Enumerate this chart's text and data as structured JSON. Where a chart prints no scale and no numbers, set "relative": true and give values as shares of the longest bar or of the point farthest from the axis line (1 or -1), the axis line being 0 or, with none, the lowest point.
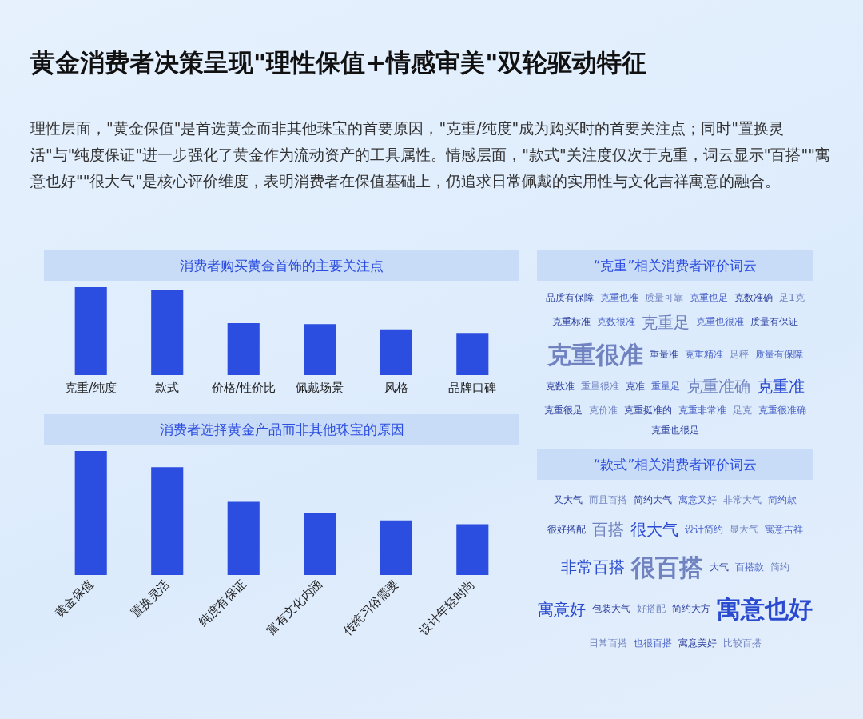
{
  "chart_data": [
    {
      "type": "other",
      "title": "黄金消费者决策呈现\"理性保值+情感审美\"双轮驱动特征",
      "subtitle": "理性层面，\"黄金保值\"是首选黄金而非其他珠宝的首要原因，\"克重/纯度\"成为购买时的首要关注点；同时\"置换灵活\"与\"纯度保证\"进一步强化了黄金作为流动资产的工具属性。情感层面，\"款式\"关注度仅次于克重，词云显示\"百搭\"\"寓意也好\"\"很大气\"是核心评价维度，表明消费者在保值基础上，仍追求日常佩戴的实用性与文化吉祥寓意的融合。"
    },
    {
      "type": "bar",
      "title": "消费者购买黄金首饰的主要关注点",
      "relative": true,
      "color": "#2b4de0",
      "categories": [
        "克重/纯度",
        "款式",
        "价格/性价比",
        "佩戴场景",
        "风格",
        "品牌口碑"
      ],
      "values": [
        1,
        0.97,
        0.59,
        0.58,
        0.52,
        0.48
      ]
    },
    {
      "type": "bar",
      "title": "消费者选择黄金产品而非其他珠宝的原因",
      "relative": true,
      "color": "#2b4de0",
      "categories": [
        "黄金保值",
        "置换灵活",
        "纯度有保证",
        "富有文化内涵",
        "传统习俗需要",
        "设计年轻时尚"
      ],
      "values": [
        1,
        0.87,
        0.59,
        0.5,
        0.44,
        0.41
      ]
    },
    {
      "type": "other",
      "title": "“克重”相关消费者评价词云",
      "annotations": [
        "品质有保障",
        "克重也准",
        "质量可靠",
        "克重也足",
        "克数准确",
        "足1克",
        "克重标准",
        "克数很准",
        "克重足",
        "克重也很准",
        "质量有保证",
        "克重很准",
        "重量准",
        "克重精准",
        "足秤",
        "质量有保障",
        "克数准",
        "重量很准",
        "克准",
        "重量足",
        "克重准确",
        "克重准",
        "克重很足",
        "克价准",
        "克重挺准的",
        "克重非常准",
        "足克",
        "克重很准确",
        "克重也很足"
      ]
    },
    {
      "type": "other",
      "title": "“款式”相关消费者评价词云",
      "annotations": [
        "又大气",
        "而且百搭",
        "简约大气",
        "寓意又好",
        "非常大气",
        "简约款",
        "很好搭配",
        "百搭",
        "很大气",
        "设计简约",
        "显大气",
        "寓意吉祥",
        "非常百搭",
        "很百搭",
        "大气",
        "百搭款",
        "简约",
        "寓意好",
        "包装大气",
        "好搭配",
        "简约大方",
        "寓意也好",
        "日常百搭",
        "也很百搭",
        "寓意美好",
        "比较百搭"
      ]
    }
  ]
}
